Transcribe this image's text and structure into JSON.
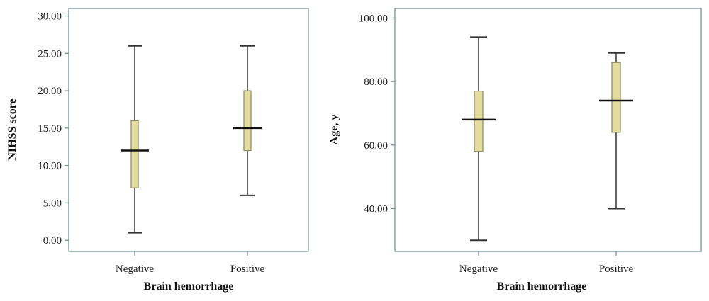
{
  "chart_data": [
    {
      "type": "box",
      "xlabel": "Brain hemorrhage",
      "ylabel": "NIHSS score",
      "ylim": [
        -1.5,
        31
      ],
      "y_ticks": [
        "0.00",
        "5.00",
        "10.00",
        "15.00",
        "20.00",
        "25.00",
        "30.00"
      ],
      "y_tick_values": [
        0,
        5,
        10,
        15,
        20,
        25,
        30
      ],
      "categories": [
        "Negative",
        "Positive"
      ],
      "boxes": [
        {
          "category": "Negative",
          "min": 1,
          "q1": 7,
          "median": 12,
          "q3": 16,
          "max": 26
        },
        {
          "category": "Positive",
          "min": 6,
          "q1": 12,
          "median": 15,
          "q3": 20,
          "max": 26
        }
      ],
      "colors": {
        "box_fill": "#e2dd9f",
        "box_stroke": "#8a8760",
        "median": "#111111",
        "whisker": "#333333",
        "frame": "#6f8a8a"
      }
    },
    {
      "type": "box",
      "xlabel": "Brain hemorrhage",
      "ylabel": "Age, y",
      "ylim": [
        26.5,
        103
      ],
      "y_ticks": [
        "40.00",
        "60.00",
        "80.00",
        "100.00"
      ],
      "y_tick_values": [
        40,
        60,
        80,
        100
      ],
      "categories": [
        "Negative",
        "Positive"
      ],
      "boxes": [
        {
          "category": "Negative",
          "min": 30,
          "q1": 58,
          "median": 68,
          "q3": 77,
          "max": 94
        },
        {
          "category": "Positive",
          "min": 40,
          "q1": 64,
          "median": 74,
          "q3": 86,
          "max": 89
        }
      ],
      "colors": {
        "box_fill": "#e2dd9f",
        "box_stroke": "#8a8760",
        "median": "#111111",
        "whisker": "#333333",
        "frame": "#6f8a8a"
      }
    }
  ]
}
